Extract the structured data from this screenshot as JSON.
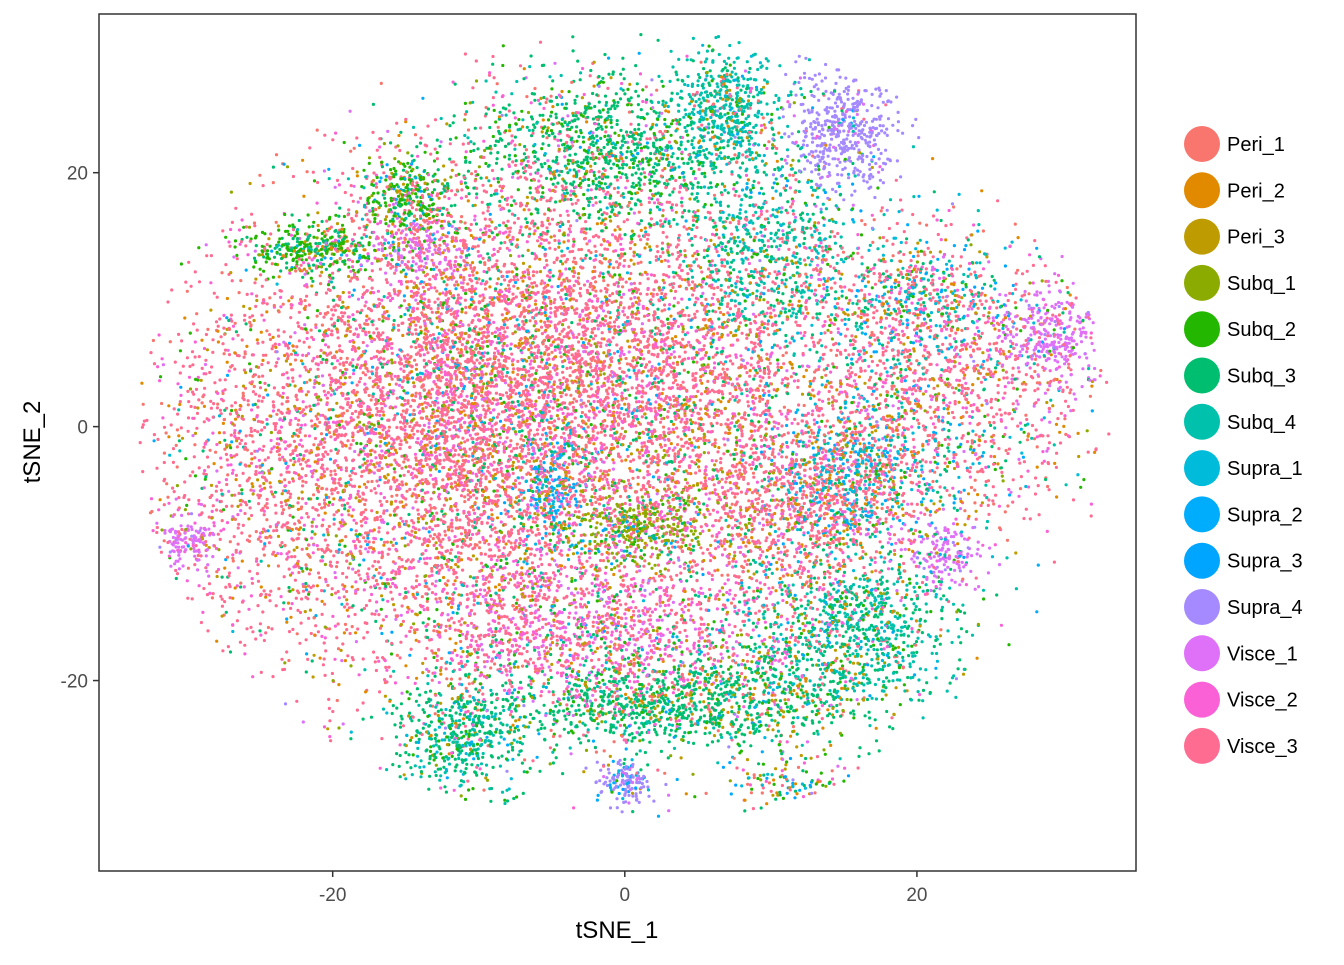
{
  "chart_data": {
    "type": "scatter",
    "title": "",
    "xlabel": "tSNE_1",
    "ylabel": "tSNE_2",
    "xlim": [
      -36,
      35
    ],
    "ylim": [
      -35,
      32.5
    ],
    "x_ticks": [
      -20,
      0,
      20
    ],
    "y_ticks": [
      -20,
      0,
      20
    ],
    "x_tick_labels": [
      "-20",
      "0",
      "20"
    ],
    "y_tick_labels": [
      "-20",
      "0",
      "20"
    ],
    "grid": false,
    "legend_position": "right",
    "series": [
      {
        "name": "Peri_1",
        "color": "#F8766D"
      },
      {
        "name": "Peri_2",
        "color": "#E18A00"
      },
      {
        "name": "Peri_3",
        "color": "#BE9C00"
      },
      {
        "name": "Subq_1",
        "color": "#8CAB00"
      },
      {
        "name": "Subq_2",
        "color": "#24B700"
      },
      {
        "name": "Subq_3",
        "color": "#00BE70"
      },
      {
        "name": "Subq_4",
        "color": "#00C1AB"
      },
      {
        "name": "Supra_1",
        "color": "#00BBDA"
      },
      {
        "name": "Supra_2",
        "color": "#00ACFC"
      },
      {
        "name": "Supra_3",
        "color": "#00A5FF"
      },
      {
        "name": "Supra_4",
        "color": "#A58AFF"
      },
      {
        "name": "Visce_1",
        "color": "#DF70F8"
      },
      {
        "name": "Visce_2",
        "color": "#FB61D7"
      },
      {
        "name": "Visce_3",
        "color": "#FF6C91"
      }
    ],
    "clusters": [
      {
        "cx": -20,
        "cy": -2,
        "sx": 7,
        "sy": 9,
        "n": 3200,
        "w": [
          2,
          1,
          1,
          0.3,
          0.5,
          0.5,
          0.1,
          0.2,
          0.2,
          0.1,
          0.05,
          0.5,
          2.5,
          8
        ]
      },
      {
        "cx": -7,
        "cy": 8,
        "sx": 7,
        "sy": 8,
        "n": 3000,
        "w": [
          2,
          1,
          1,
          0.3,
          0.5,
          0.8,
          0.2,
          0.2,
          0.2,
          0.1,
          0.05,
          0.5,
          2.5,
          8
        ]
      },
      {
        "cx": 3,
        "cy": 2,
        "sx": 7,
        "sy": 7,
        "n": 3000,
        "w": [
          2,
          1,
          1,
          0.3,
          0.5,
          0.8,
          0.2,
          0.2,
          0.2,
          0.1,
          0.05,
          0.5,
          2.5,
          8
        ]
      },
      {
        "cx": -9,
        "cy": -6,
        "sx": 3.5,
        "sy": 8,
        "n": 1200,
        "w": [
          2,
          1,
          1,
          0.3,
          0.5,
          0.8,
          0.2,
          0.2,
          0.2,
          0.1,
          0.05,
          0.5,
          2.5,
          8
        ]
      },
      {
        "cx": 12,
        "cy": -7,
        "sx": 4,
        "sy": 4,
        "n": 1000,
        "w": [
          2,
          1.5,
          1,
          0.3,
          0.5,
          0.8,
          0.2,
          0.2,
          0.3,
          0.1,
          0.05,
          0.5,
          2,
          8
        ]
      },
      {
        "cx": 22,
        "cy": 3,
        "sx": 5,
        "sy": 6,
        "n": 1400,
        "w": [
          2,
          1,
          1,
          0.3,
          0.5,
          0.8,
          0.8,
          0.8,
          0.5,
          0.1,
          0.05,
          0.5,
          2,
          7
        ]
      },
      {
        "cx": -2,
        "cy": -16,
        "sx": 7,
        "sy": 3,
        "n": 1400,
        "w": [
          1.5,
          0.6,
          0.6,
          0.3,
          0.5,
          1,
          0.2,
          0.2,
          0.2,
          0.1,
          0.05,
          2,
          6,
          5
        ]
      },
      {
        "cx": -1,
        "cy": 22,
        "sx": 5,
        "sy": 3,
        "n": 1100,
        "w": [
          0.3,
          0.2,
          0.2,
          0.3,
          2,
          7,
          0.8,
          0.2,
          0.1,
          0.1,
          0.05,
          0.2,
          0.3,
          0.6
        ]
      },
      {
        "cx": 7,
        "cy": 25,
        "sx": 2,
        "sy": 2.5,
        "n": 500,
        "w": [
          0.2,
          0.2,
          0.2,
          0.1,
          0.3,
          1,
          8,
          0.5,
          0.1,
          0.1,
          0.05,
          0.1,
          0.1,
          0.3
        ]
      },
      {
        "cx": 10,
        "cy": 14,
        "sx": 3,
        "sy": 4,
        "n": 700,
        "w": [
          0.3,
          0.2,
          0.2,
          0.1,
          0.4,
          2,
          5,
          1,
          0.1,
          0.1,
          0.05,
          0.2,
          0.3,
          1
        ]
      },
      {
        "cx": 15,
        "cy": 23,
        "sx": 2,
        "sy": 2.5,
        "n": 500,
        "w": [
          0.05,
          0.05,
          0.05,
          0.05,
          0.05,
          0.1,
          0.1,
          0.05,
          0.05,
          0.05,
          8,
          0.3,
          0.1,
          0.1
        ]
      },
      {
        "cx": 29,
        "cy": 7,
        "sx": 1.8,
        "sy": 2,
        "n": 320,
        "w": [
          0.1,
          0.05,
          0.05,
          0.05,
          0.05,
          0.1,
          0.1,
          0.05,
          0.05,
          0.05,
          0.3,
          8,
          0.5,
          0.5
        ]
      },
      {
        "cx": -14,
        "cy": 14,
        "sx": 1.5,
        "sy": 1.2,
        "n": 130,
        "w": [
          0.1,
          0.05,
          0.05,
          0.05,
          0.1,
          0.1,
          0.1,
          0.1,
          0.1,
          0.05,
          0.5,
          8,
          0.5,
          0.5
        ]
      },
      {
        "cx": 1,
        "cy": -8,
        "sx": 2.5,
        "sy": 1.5,
        "n": 450,
        "w": [
          0.3,
          0.2,
          0.3,
          7,
          1,
          1,
          0.2,
          0.2,
          0.5,
          0.2,
          0.05,
          0.2,
          0.3,
          1
        ]
      },
      {
        "cx": -5,
        "cy": -5,
        "sx": 1.2,
        "sy": 1.8,
        "n": 200,
        "w": [
          0.3,
          0.2,
          0.3,
          0.3,
          0.3,
          0.5,
          1,
          2,
          5,
          2,
          0.1,
          0.3,
          0.3,
          0.5
        ]
      },
      {
        "cx": 16,
        "cy": -4,
        "sx": 3,
        "sy": 3,
        "n": 600,
        "w": [
          0.8,
          0.5,
          0.5,
          0.3,
          0.5,
          1,
          2,
          4,
          3,
          1,
          0.3,
          0.5,
          1,
          2
        ]
      },
      {
        "cx": 8,
        "cy": -21,
        "sx": 5,
        "sy": 2.5,
        "n": 800,
        "w": [
          0.3,
          0.6,
          1,
          0.5,
          1,
          6,
          0.8,
          0.2,
          0.1,
          0.1,
          0.05,
          0.2,
          0.3,
          0.5
        ]
      },
      {
        "cx": 0,
        "cy": -22,
        "sx": 4,
        "sy": 1.5,
        "n": 500,
        "w": [
          0.3,
          0.3,
          0.5,
          0.5,
          1,
          6,
          0.8,
          0.2,
          0.1,
          0.1,
          0.05,
          0.2,
          0.3,
          0.5
        ]
      },
      {
        "cx": 16,
        "cy": -16,
        "sx": 3.5,
        "sy": 3,
        "n": 850,
        "w": [
          0.2,
          0.2,
          0.3,
          0.3,
          0.5,
          3,
          6,
          0.5,
          0.2,
          0.1,
          0.05,
          0.1,
          0.2,
          0.3
        ]
      },
      {
        "cx": -11,
        "cy": -24,
        "sx": 2.5,
        "sy": 2.5,
        "n": 550,
        "w": [
          0.2,
          0.2,
          0.3,
          0.3,
          1,
          6,
          3,
          0.8,
          0.3,
          0.1,
          0.05,
          0.1,
          0.1,
          0.3
        ]
      },
      {
        "cx": -21,
        "cy": 14,
        "sx": 2.5,
        "sy": 1.2,
        "n": 350,
        "w": [
          0.2,
          0.5,
          0.5,
          0.5,
          5,
          3,
          0.5,
          0.2,
          0.1,
          0.1,
          0.05,
          0.1,
          0.2,
          0.3
        ]
      },
      {
        "cx": -15,
        "cy": 18,
        "sx": 1.5,
        "sy": 1.5,
        "n": 280,
        "w": [
          0.2,
          0.3,
          0.5,
          2,
          5,
          2,
          0.5,
          0.2,
          1,
          0.2,
          0.05,
          0.1,
          0.2,
          0.3
        ]
      },
      {
        "cx": -30,
        "cy": -9,
        "sx": 0.9,
        "sy": 0.9,
        "n": 120,
        "w": [
          0.1,
          0.05,
          0.05,
          0.05,
          0.05,
          0.1,
          0.1,
          0.1,
          0.1,
          0.05,
          0.5,
          8,
          0.5,
          0.2
        ]
      },
      {
        "cx": 22,
        "cy": -10,
        "sx": 1.2,
        "sy": 1.3,
        "n": 150,
        "w": [
          0.1,
          0.05,
          0.05,
          0.05,
          0.05,
          0.1,
          0.1,
          0.1,
          0.1,
          0.05,
          0.5,
          8,
          0.5,
          0.2
        ]
      },
      {
        "cx": 0,
        "cy": -28,
        "sx": 0.9,
        "sy": 0.9,
        "n": 150,
        "w": [
          0.1,
          0.05,
          0.05,
          0.05,
          0.05,
          0.1,
          0.1,
          0.5,
          1,
          0.3,
          6,
          0.5,
          0.2,
          0.2
        ]
      },
      {
        "cx": 13,
        "cy": -29,
        "sx": 3.5,
        "sy": 1.3,
        "n": 260,
        "w": [
          2,
          1.5,
          1.5,
          1,
          2,
          1,
          0.5,
          1,
          1,
          1,
          0.2,
          0.5,
          1,
          1
        ]
      },
      {
        "cx": -14,
        "cy": 3,
        "sx": 3,
        "sy": 8,
        "n": 500,
        "w": [
          2,
          1,
          1,
          0.3,
          0.5,
          1,
          0.5,
          0.5,
          0.5,
          0.1,
          0.05,
          0.5,
          2,
          6
        ]
      },
      {
        "cx": 20,
        "cy": 10,
        "sx": 3,
        "sy": 3,
        "n": 500,
        "w": [
          1,
          0.5,
          0.5,
          0.3,
          0.5,
          1.5,
          1.5,
          1.5,
          1,
          0.3,
          0.1,
          0.5,
          1,
          3
        ]
      }
    ]
  }
}
